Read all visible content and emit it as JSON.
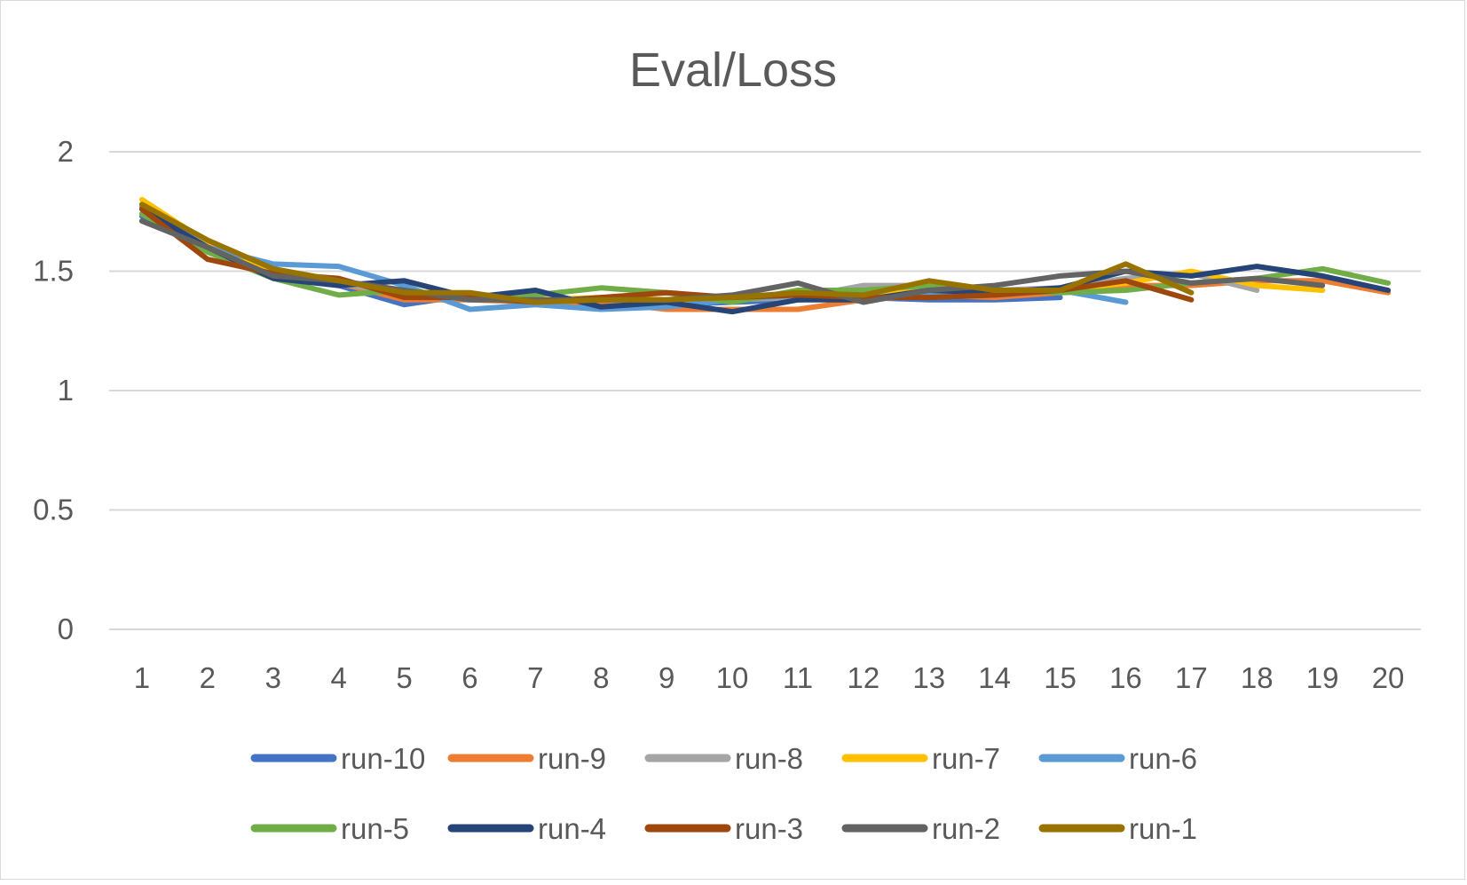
{
  "chart_data": {
    "type": "line",
    "title": "Eval/Loss",
    "xlabel": "",
    "ylabel": "",
    "x": [
      1,
      2,
      3,
      4,
      5,
      6,
      7,
      8,
      9,
      10,
      11,
      12,
      13,
      14,
      15,
      16,
      17,
      18,
      19,
      20
    ],
    "ylim": [
      0,
      2
    ],
    "yticks": [
      "0",
      "0.5",
      "1",
      "1.5",
      "2"
    ],
    "grid": true,
    "legend_position": "bottom",
    "series": [
      {
        "name": "run-10",
        "color": "#4472C4",
        "values": [
          1.73,
          1.6,
          1.5,
          1.44,
          1.36,
          1.4,
          1.37,
          1.35,
          1.36,
          1.37,
          1.38,
          1.39,
          1.38,
          1.38,
          1.39,
          null,
          null,
          null,
          null,
          null
        ]
      },
      {
        "name": "run-9",
        "color": "#ED7D31",
        "values": [
          1.77,
          1.59,
          1.49,
          1.45,
          1.38,
          1.38,
          1.37,
          1.37,
          1.34,
          1.34,
          1.34,
          1.38,
          1.4,
          1.39,
          1.41,
          1.44,
          1.44,
          1.46,
          1.46,
          1.41
        ]
      },
      {
        "name": "run-8",
        "color": "#A5A5A5",
        "values": [
          1.74,
          1.6,
          1.49,
          1.45,
          1.4,
          1.4,
          1.38,
          1.38,
          1.37,
          1.38,
          1.39,
          1.44,
          1.44,
          1.42,
          1.43,
          1.47,
          1.49,
          1.42,
          null,
          null
        ]
      },
      {
        "name": "run-7",
        "color": "#FFC000",
        "values": [
          1.8,
          1.62,
          1.5,
          1.46,
          1.41,
          1.4,
          1.38,
          1.39,
          1.38,
          1.38,
          1.4,
          1.4,
          1.42,
          1.41,
          1.42,
          1.45,
          1.5,
          1.44,
          1.42,
          null
        ]
      },
      {
        "name": "run-6",
        "color": "#5B9BD5",
        "values": [
          1.77,
          1.6,
          1.53,
          1.52,
          1.44,
          1.34,
          1.36,
          1.34,
          1.35,
          1.38,
          1.4,
          1.39,
          1.4,
          1.4,
          1.42,
          1.37,
          null,
          null,
          null,
          null
        ]
      },
      {
        "name": "run-5",
        "color": "#70AD47",
        "values": [
          1.74,
          1.58,
          1.47,
          1.4,
          1.42,
          1.39,
          1.4,
          1.43,
          1.41,
          1.37,
          1.42,
          1.42,
          1.44,
          1.42,
          1.41,
          1.42,
          1.45,
          1.47,
          1.51,
          1.45
        ]
      },
      {
        "name": "run-4",
        "color": "#264478",
        "values": [
          1.76,
          1.6,
          1.47,
          1.44,
          1.46,
          1.39,
          1.42,
          1.35,
          1.37,
          1.33,
          1.38,
          1.38,
          1.42,
          1.41,
          1.43,
          1.5,
          1.48,
          1.52,
          1.48,
          1.42
        ]
      },
      {
        "name": "run-3",
        "color": "#9E480E",
        "values": [
          1.76,
          1.55,
          1.49,
          1.47,
          1.39,
          1.39,
          1.37,
          1.39,
          1.41,
          1.39,
          1.4,
          1.39,
          1.39,
          1.4,
          1.42,
          1.46,
          1.38,
          null,
          null,
          null
        ]
      },
      {
        "name": "run-2",
        "color": "#636363",
        "values": [
          1.71,
          1.6,
          1.48,
          1.46,
          1.42,
          1.38,
          1.38,
          1.38,
          1.38,
          1.4,
          1.45,
          1.37,
          1.42,
          1.44,
          1.48,
          1.5,
          1.45,
          1.47,
          1.44,
          null
        ]
      },
      {
        "name": "run-1",
        "color": "#997300",
        "values": [
          1.78,
          1.63,
          1.51,
          1.46,
          1.41,
          1.41,
          1.37,
          1.38,
          1.38,
          1.39,
          1.41,
          1.4,
          1.46,
          1.42,
          1.42,
          1.53,
          1.41,
          null,
          null,
          null
        ]
      }
    ]
  }
}
